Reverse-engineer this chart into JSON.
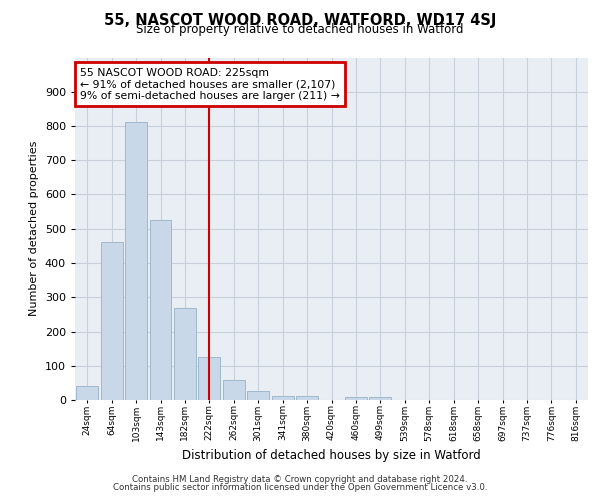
{
  "title": "55, NASCOT WOOD ROAD, WATFORD, WD17 4SJ",
  "subtitle": "Size of property relative to detached houses in Watford",
  "xlabel": "Distribution of detached houses by size in Watford",
  "ylabel": "Number of detached properties",
  "bar_labels": [
    "24sqm",
    "64sqm",
    "103sqm",
    "143sqm",
    "182sqm",
    "222sqm",
    "262sqm",
    "301sqm",
    "341sqm",
    "380sqm",
    "420sqm",
    "460sqm",
    "499sqm",
    "539sqm",
    "578sqm",
    "618sqm",
    "658sqm",
    "697sqm",
    "737sqm",
    "776sqm",
    "816sqm"
  ],
  "bar_values": [
    42,
    460,
    813,
    525,
    270,
    125,
    58,
    25,
    12,
    12,
    0,
    8,
    8,
    0,
    0,
    0,
    0,
    0,
    0,
    0,
    0
  ],
  "bar_color": "#c8d8e8",
  "bar_edge_color": "#a0b8cc",
  "vline_color": "#cc0000",
  "annotation_line1": "55 NASCOT WOOD ROAD: 225sqm",
  "annotation_line2": "← 91% of detached houses are smaller (2,107)",
  "annotation_line3": "9% of semi-detached houses are larger (211) →",
  "annotation_box_color": "#cc0000",
  "annotation_text_color": "#000000",
  "ylim": [
    0,
    1000
  ],
  "yticks": [
    0,
    100,
    200,
    300,
    400,
    500,
    600,
    700,
    800,
    900,
    1000
  ],
  "grid_color": "#c8d0dc",
  "bg_color": "#e8eef4",
  "footer_line1": "Contains HM Land Registry data © Crown copyright and database right 2024.",
  "footer_line2": "Contains public sector information licensed under the Open Government Licence v3.0."
}
